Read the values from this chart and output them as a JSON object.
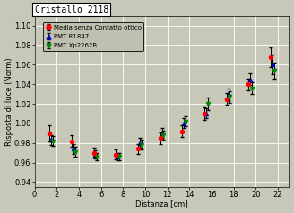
{
  "title": "Cristallo 2118",
  "xlabel": "Distanza [cm]",
  "ylabel": "Risposta di luce (Norm)",
  "xlim": [
    0,
    23
  ],
  "ylim": [
    0.935,
    1.11
  ],
  "yticks": [
    0.94,
    0.96,
    0.98,
    1.0,
    1.02,
    1.04,
    1.06,
    1.08,
    1.1
  ],
  "xticks": [
    0,
    2,
    4,
    6,
    8,
    10,
    12,
    14,
    16,
    18,
    20,
    22
  ],
  "bg_color": "#c8c8b8",
  "plot_bg_color": "#c8c8b8",
  "x_red": [
    1.5,
    3.5,
    5.5,
    7.5,
    9.5,
    11.5,
    13.5,
    15.5,
    17.5,
    19.5,
    21.5
  ],
  "y_red": [
    0.99,
    0.982,
    0.97,
    0.968,
    0.974,
    0.985,
    0.992,
    1.01,
    1.025,
    1.04,
    1.068
  ],
  "ye_red": [
    0.008,
    0.006,
    0.005,
    0.005,
    0.005,
    0.006,
    0.006,
    0.006,
    0.006,
    0.006,
    0.01
  ],
  "x_blue": [
    1.5,
    3.5,
    5.5,
    7.5,
    9.5,
    11.5,
    13.5,
    15.5,
    17.5,
    19.5,
    21.5
  ],
  "y_blue": [
    0.983,
    0.974,
    0.968,
    0.966,
    0.98,
    0.99,
    1.0,
    1.01,
    1.03,
    1.045,
    1.06
  ],
  "ye_blue": [
    0.005,
    0.005,
    0.004,
    0.004,
    0.005,
    0.005,
    0.005,
    0.005,
    0.006,
    0.006,
    0.01
  ],
  "x_green": [
    1.5,
    3.5,
    5.5,
    7.5,
    9.5,
    11.5,
    13.5,
    15.5,
    17.5,
    19.5,
    21.5
  ],
  "y_green": [
    0.982,
    0.971,
    0.966,
    0.966,
    0.978,
    0.988,
    1.002,
    1.02,
    1.027,
    1.036,
    1.054
  ],
  "ye_green": [
    0.005,
    0.005,
    0.004,
    0.004,
    0.005,
    0.005,
    0.005,
    0.006,
    0.006,
    0.006,
    0.008
  ],
  "legend_labels": [
    "Media senza Contatto ottico",
    "PMT R1847",
    "PMT Xp2262B"
  ],
  "red_color": "#ff0000",
  "blue_color": "#0000cc",
  "green_color": "#008800",
  "grid_color": "#ffffff",
  "title_font": "monospace",
  "title_fontsize": 7,
  "axis_fontsize": 6,
  "tick_fontsize": 6,
  "legend_fontsize": 5,
  "marker_size": 3,
  "elinewidth": 0.7,
  "capsize": 1.5
}
